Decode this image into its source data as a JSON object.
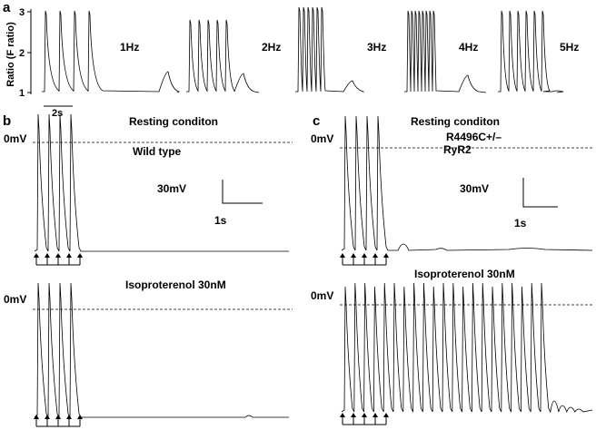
{
  "panel_a": {
    "letter": "a",
    "ylabel": "Ratio (F ratio)",
    "yticks": [
      "3",
      "2",
      "1"
    ],
    "time_scale": "2s",
    "frequencies": [
      {
        "label": "1Hz",
        "peaks": 4
      },
      {
        "label": "2Hz",
        "peaks": 5
      },
      {
        "label": "3Hz",
        "peaks": 6
      },
      {
        "label": "4Hz",
        "peaks": 8
      },
      {
        "label": "5Hz",
        "peaks": 6
      }
    ]
  },
  "panel_b": {
    "letter": "b",
    "genotype": "Wild type",
    "top": {
      "condition": "Resting conditon",
      "zero": "0mV",
      "scale_v": "30mV",
      "scale_t": "1s"
    },
    "bottom": {
      "condition": "Isoproterenol 30nM",
      "zero": "0mV"
    }
  },
  "panel_c": {
    "letter": "c",
    "genotype_line1": "R4496C+/–",
    "genotype_line2": "RyR2",
    "top": {
      "condition": "Resting conditon",
      "zero": "0mV",
      "scale_v": "30mV",
      "scale_t": "1s"
    },
    "bottom": {
      "condition": "Isoproterenol 30nM",
      "zero": "0mV"
    }
  }
}
